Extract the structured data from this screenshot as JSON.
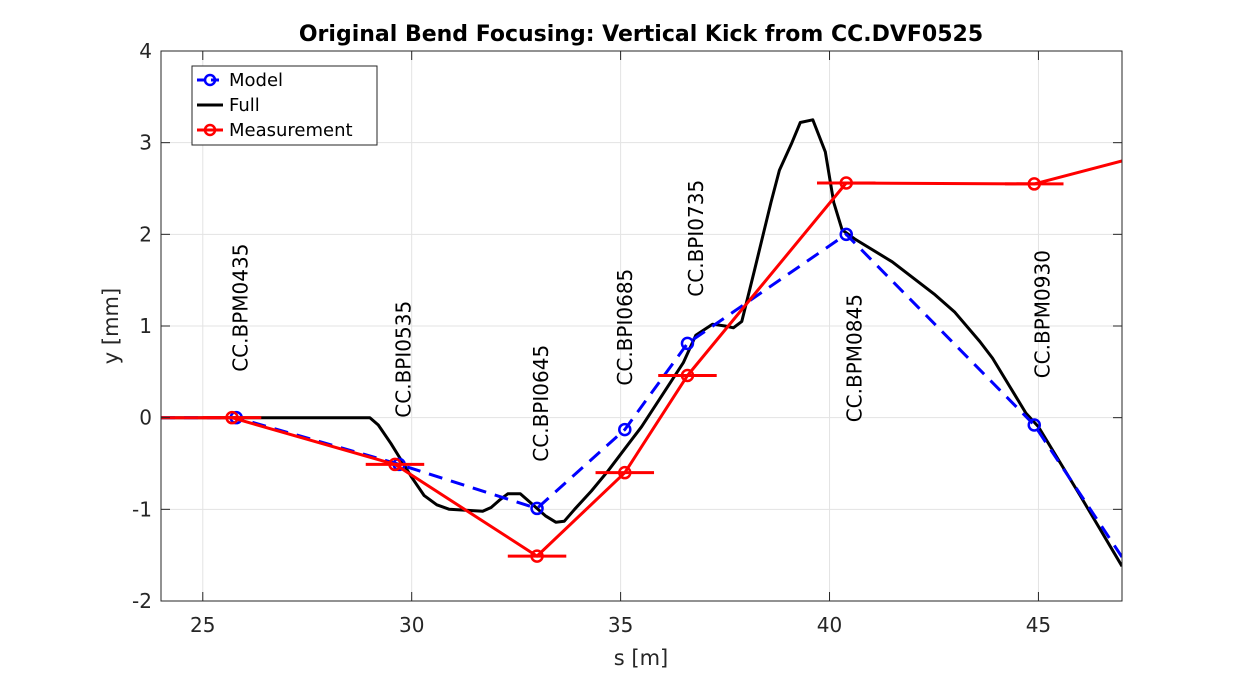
{
  "chart_data": {
    "type": "line",
    "title": "Original Bend Focusing: Vertical Kick from CC.DVF0525",
    "xlabel": "s [m]",
    "ylabel": "y [mm]",
    "xlim": [
      24,
      47
    ],
    "ylim": [
      -2,
      4
    ],
    "xticks": [
      25,
      30,
      35,
      40,
      45
    ],
    "yticks": [
      -2,
      -1,
      0,
      1,
      2,
      3,
      4
    ],
    "grid": true,
    "legend_position": "top-left",
    "series": [
      {
        "name": "Model",
        "color": "#0000ff",
        "style": "dashed",
        "marker": "circle",
        "points": [
          [
            24,
            0
          ],
          [
            25.8,
            0
          ],
          [
            29.7,
            -0.51
          ],
          [
            33.0,
            -0.99
          ],
          [
            35.1,
            -0.13
          ],
          [
            36.6,
            0.81
          ],
          [
            40.4,
            2.0
          ],
          [
            44.9,
            -0.08
          ],
          [
            47,
            -1.52
          ]
        ],
        "marker_x": [
          25.8,
          29.7,
          33.0,
          35.1,
          36.6,
          40.4,
          44.9
        ]
      },
      {
        "name": "Full",
        "color": "#000000",
        "style": "solid",
        "points": [
          [
            24,
            0
          ],
          [
            26.5,
            0
          ],
          [
            29.0,
            0
          ],
          [
            29.2,
            -0.08
          ],
          [
            29.5,
            -0.28
          ],
          [
            29.8,
            -0.5
          ],
          [
            30.0,
            -0.65
          ],
          [
            30.3,
            -0.85
          ],
          [
            30.6,
            -0.95
          ],
          [
            30.9,
            -1.0
          ],
          [
            31.3,
            -1.01
          ],
          [
            31.7,
            -1.02
          ],
          [
            31.9,
            -0.98
          ],
          [
            32.1,
            -0.9
          ],
          [
            32.3,
            -0.83
          ],
          [
            32.6,
            -0.83
          ],
          [
            32.9,
            -0.95
          ],
          [
            33.2,
            -1.07
          ],
          [
            33.45,
            -1.14
          ],
          [
            33.65,
            -1.13
          ],
          [
            33.9,
            -1.0
          ],
          [
            34.3,
            -0.8
          ],
          [
            34.7,
            -0.58
          ],
          [
            35.0,
            -0.4
          ],
          [
            35.5,
            -0.1
          ],
          [
            36.0,
            0.25
          ],
          [
            36.5,
            0.6
          ],
          [
            36.8,
            0.9
          ],
          [
            37.2,
            1.02
          ],
          [
            37.5,
            1.0
          ],
          [
            37.7,
            0.98
          ],
          [
            37.9,
            1.05
          ],
          [
            38.2,
            1.6
          ],
          [
            38.6,
            2.35
          ],
          [
            38.8,
            2.7
          ],
          [
            39.1,
            3.0
          ],
          [
            39.3,
            3.22
          ],
          [
            39.6,
            3.25
          ],
          [
            39.9,
            2.9
          ],
          [
            40.1,
            2.35
          ],
          [
            40.3,
            2.05
          ],
          [
            40.6,
            1.95
          ],
          [
            41.5,
            1.7
          ],
          [
            42.5,
            1.35
          ],
          [
            43.0,
            1.15
          ],
          [
            43.6,
            0.83
          ],
          [
            43.9,
            0.65
          ],
          [
            44.3,
            0.35
          ],
          [
            44.7,
            0.05
          ],
          [
            45.0,
            -0.1
          ],
          [
            46.0,
            -0.85
          ],
          [
            47.0,
            -1.62
          ]
        ]
      },
      {
        "name": "Measurement",
        "color": "#ff0000",
        "style": "solid",
        "marker": "circle",
        "points": [
          [
            24,
            0
          ],
          [
            25.7,
            0
          ],
          [
            29.6,
            -0.51
          ],
          [
            33.0,
            -1.51
          ],
          [
            35.1,
            -0.6
          ],
          [
            36.6,
            0.46
          ],
          [
            40.4,
            2.56
          ],
          [
            44.9,
            2.55
          ],
          [
            47,
            2.8
          ]
        ],
        "marker_x": [
          25.7,
          29.6,
          33.0,
          35.1,
          36.6,
          40.4,
          44.9
        ],
        "error_bar_halfwidth": 0.7
      }
    ],
    "annotations": [
      {
        "text": "CC.BPM0435",
        "x": 25.9,
        "y": 0.5
      },
      {
        "text": "CC.BPI0535",
        "x": 29.8,
        "y": 0.0
      },
      {
        "text": "CC.BPI0645",
        "x": 33.1,
        "y": -0.48
      },
      {
        "text": "CC.BPI0685",
        "x": 35.1,
        "y": 0.35
      },
      {
        "text": "CC.BPI0735",
        "x": 36.8,
        "y": 1.32
      },
      {
        "text": "CC.BPM0845",
        "x": 40.6,
        "y": -0.05
      },
      {
        "text": "CC.BPM0930",
        "x": 45.1,
        "y": 0.43
      }
    ]
  }
}
